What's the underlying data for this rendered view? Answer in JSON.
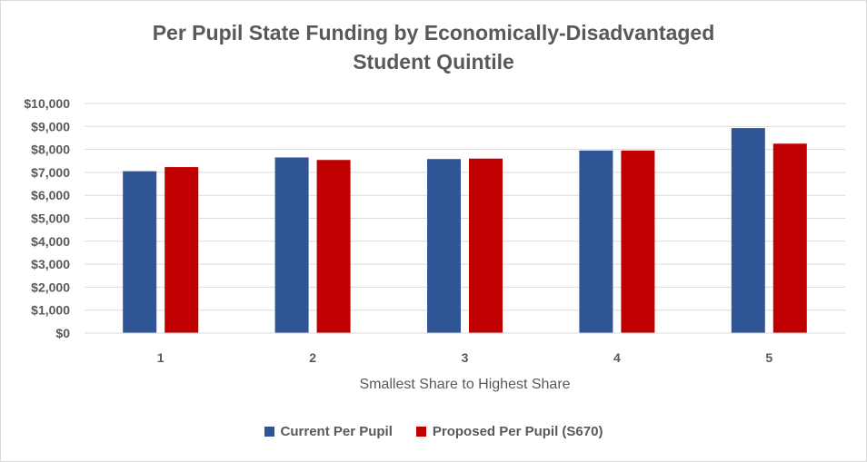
{
  "chart_data": {
    "type": "bar",
    "title_lines": [
      "Per Pupil State Funding by Economically-Disadvantaged",
      "Student Quintile"
    ],
    "categories": [
      "1",
      "2",
      "3",
      "4",
      "5"
    ],
    "series": [
      {
        "name": "Current Per Pupil",
        "color": "#2f5597",
        "values": [
          7050,
          7650,
          7580,
          7950,
          8930
        ]
      },
      {
        "name": "Proposed Per Pupil (S670)",
        "color": "#c00000",
        "values": [
          7230,
          7540,
          7600,
          7950,
          8250
        ]
      }
    ],
    "xlabel": "Smallest Share to Highest Share",
    "ylabel": "",
    "ylim": [
      0,
      10000
    ],
    "y_ticks": [
      "$0",
      "$1,000",
      "$2,000",
      "$3,000",
      "$4,000",
      "$5,000",
      "$6,000",
      "$7,000",
      "$8,000",
      "$9,000",
      "$10,000"
    ],
    "grid": true,
    "legend_position": "bottom"
  }
}
